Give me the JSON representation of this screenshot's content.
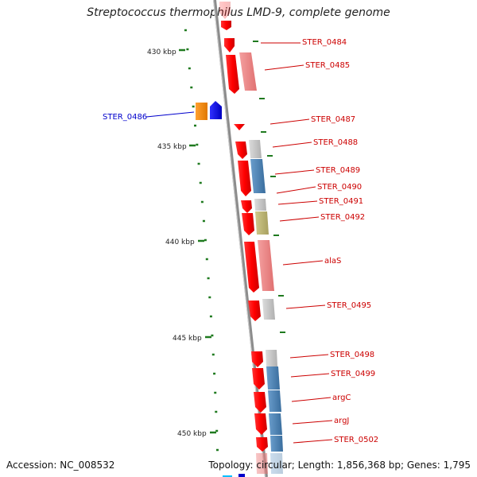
{
  "title": "Streptococcus thermophilus LMD-9, complete genome",
  "footer": {
    "accession": "Accession: NC_008532",
    "topology": "Topology: circular; Length: 1,856,368 bp; Genes: 1,795"
  },
  "kbp_marks": [
    {
      "label": "430 kbp",
      "pos": 430
    },
    {
      "label": "435 kbp",
      "pos": 435
    },
    {
      "label": "440 kbp",
      "pos": 440
    },
    {
      "label": "445 kbp",
      "pos": 445
    },
    {
      "label": "450 kbp",
      "pos": 450
    }
  ],
  "genes": [
    {
      "name": "STER_0484",
      "color": "#cc0000"
    },
    {
      "name": "STER_0485",
      "color": "#cc0000"
    },
    {
      "name": "STER_0486",
      "color": "#0000cc"
    },
    {
      "name": "STER_0487",
      "color": "#cc0000"
    },
    {
      "name": "STER_0488",
      "color": "#cc0000"
    },
    {
      "name": "STER_0489",
      "color": "#cc0000"
    },
    {
      "name": "STER_0490",
      "color": "#cc0000"
    },
    {
      "name": "STER_0491",
      "color": "#cc0000"
    },
    {
      "name": "STER_0492",
      "color": "#cc0000"
    },
    {
      "name": "alaS",
      "color": "#cc0000"
    },
    {
      "name": "STER_0495",
      "color": "#cc0000"
    },
    {
      "name": "STER_0498",
      "color": "#cc0000"
    },
    {
      "name": "STER_0499",
      "color": "#cc0000"
    },
    {
      "name": "argC",
      "color": "#cc0000"
    },
    {
      "name": "argJ",
      "color": "#cc0000"
    },
    {
      "name": "STER_0502",
      "color": "#cc0000"
    }
  ],
  "colors": {
    "cds": "#ff0000",
    "cds_minus": "#0000ff",
    "orange_feature": "#ff8c00",
    "pink_feature": "#f08080",
    "gray_feature": "#c0c0c0",
    "steelblue_feature": "#4682b4",
    "olive_feature": "#bdb76b",
    "backbone": "#8c8c8c",
    "tick": "#1f7a1f"
  }
}
